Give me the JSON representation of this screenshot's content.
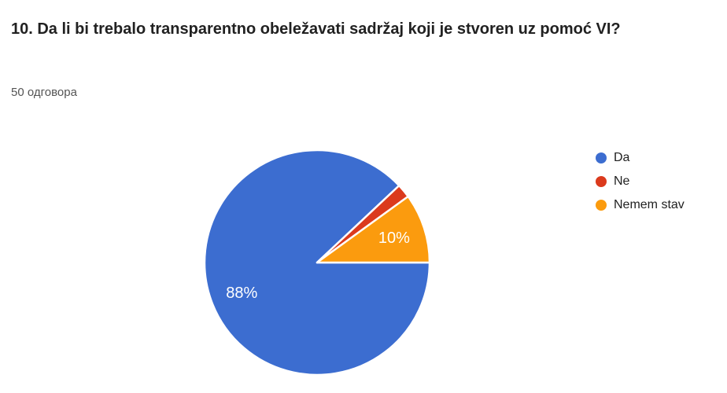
{
  "page": {
    "background": "#FFFFFF"
  },
  "question": {
    "title": "10. Da li bi trebalo transparentno obeležavati sadržaj koji je stvoren uz pomoć VI?",
    "responses_text": "50 одговора"
  },
  "chart_data": {
    "type": "pie",
    "title": "",
    "categories": [
      "Da",
      "Ne",
      "Nemem stav"
    ],
    "values": [
      88,
      2,
      10
    ],
    "unit": "%",
    "slice_labels": [
      "88%",
      "",
      "10%"
    ],
    "colors": [
      "#3C6DD0",
      "#DB3A1D",
      "#FB9B0E"
    ],
    "label_color": "#FFFFFF",
    "legend_position": "right",
    "start_angle_deg": 0,
    "direction": "clockwise"
  }
}
